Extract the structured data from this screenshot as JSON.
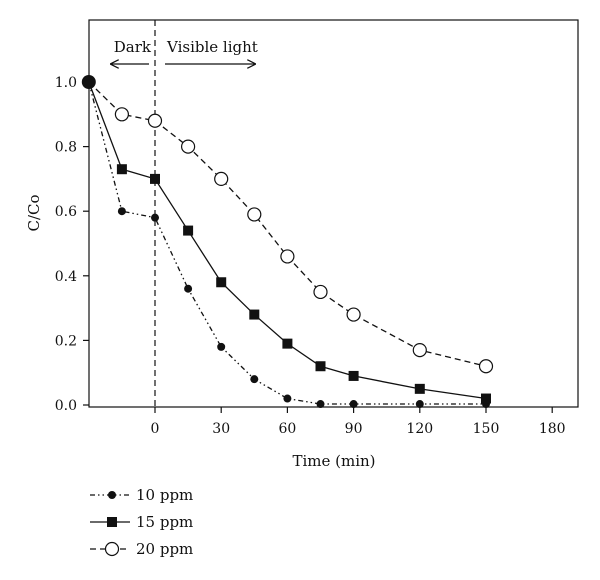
{
  "chart_data": {
    "type": "line",
    "xlabel": "Time (min)",
    "ylabel": "C/Co",
    "xlim": [
      -30,
      180
    ],
    "ylim": [
      0,
      1.0
    ],
    "x_ticks": [
      0,
      30,
      60,
      90,
      120,
      150,
      180
    ],
    "y_ticks": [
      0.0,
      0.2,
      0.4,
      0.6,
      0.8,
      1.0
    ],
    "x_tick_labels": [
      "0",
      "30",
      "60",
      "90",
      "120",
      "150",
      "180"
    ],
    "y_tick_labels": [
      "0.0",
      "0.2",
      "0.4",
      "0.6",
      "0.8",
      "1.0"
    ],
    "grid": false,
    "legend_position": "below",
    "annotations": {
      "dark": "Dark",
      "visible": "Visible light",
      "divider_x": 0
    },
    "series": [
      {
        "name": "10 ppm",
        "marker": "filled-circle",
        "line_style": "dash-dot-dot",
        "x": [
          -30,
          -15,
          0,
          15,
          30,
          45,
          60,
          75,
          90,
          120,
          150
        ],
        "y": [
          1.0,
          0.6,
          0.58,
          0.36,
          0.18,
          0.08,
          0.02,
          0.003,
          0.003,
          0.003,
          0.003
        ]
      },
      {
        "name": "15 ppm",
        "marker": "filled-square",
        "line_style": "solid",
        "x": [
          -30,
          -15,
          0,
          15,
          30,
          45,
          60,
          75,
          90,
          120,
          150
        ],
        "y": [
          1.0,
          0.73,
          0.7,
          0.54,
          0.38,
          0.28,
          0.19,
          0.12,
          0.09,
          0.05,
          0.02
        ]
      },
      {
        "name": "20 ppm",
        "marker": "open-circle",
        "line_style": "dashed",
        "x": [
          -30,
          -15,
          0,
          15,
          30,
          45,
          60,
          75,
          90,
          120,
          150
        ],
        "y": [
          1.0,
          0.9,
          0.88,
          0.8,
          0.7,
          0.59,
          0.46,
          0.35,
          0.28,
          0.17,
          0.12
        ]
      }
    ]
  }
}
